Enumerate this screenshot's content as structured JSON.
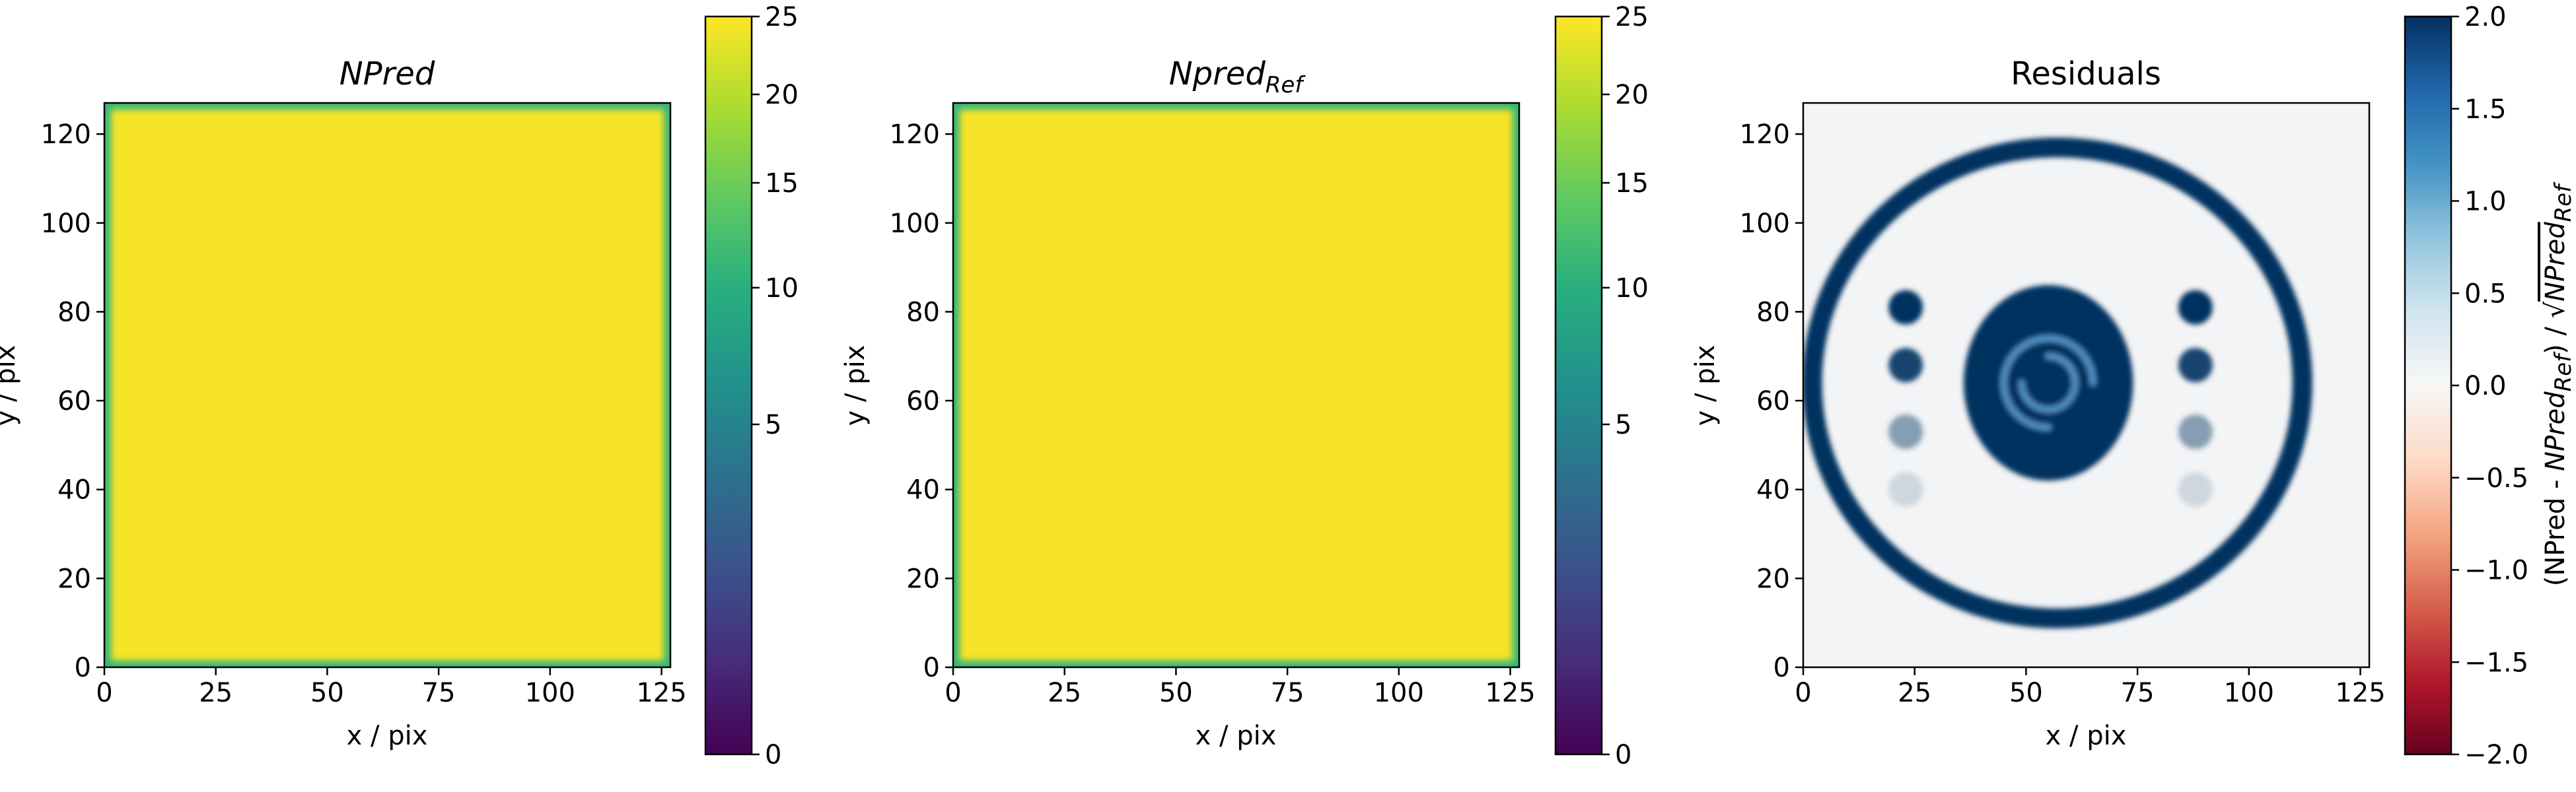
{
  "chart_data": [
    {
      "type": "heatmap",
      "title": "NPred",
      "title_style": "italic",
      "xlabel": "x / pix",
      "ylabel": "y / pix",
      "xlim": [
        0,
        127
      ],
      "ylim": [
        0,
        127
      ],
      "x_ticks": [
        0,
        25,
        50,
        75,
        100,
        125
      ],
      "y_ticks": [
        0,
        20,
        40,
        60,
        80,
        100,
        120
      ],
      "colormap": "viridis",
      "colorbar": {
        "label": "",
        "min": 0,
        "max": 25,
        "scale": "sqrt",
        "ticks": [
          0,
          5,
          10,
          15,
          20,
          25
        ]
      },
      "map": {
        "description_value": "nearly uniform",
        "interior_value": 23,
        "edge_value": 15
      }
    },
    {
      "type": "heatmap",
      "title": "Npred",
      "title_subscript": "Ref",
      "title_style": "italic",
      "xlabel": "x / pix",
      "ylabel": "y / pix",
      "xlim": [
        0,
        127
      ],
      "ylim": [
        0,
        127
      ],
      "x_ticks": [
        0,
        25,
        50,
        75,
        100,
        125
      ],
      "y_ticks": [
        0,
        20,
        40,
        60,
        80,
        100,
        120
      ],
      "colormap": "viridis",
      "colorbar": {
        "label": "",
        "min": 0,
        "max": 25,
        "scale": "sqrt",
        "ticks": [
          0,
          5,
          10,
          15,
          20,
          25
        ]
      },
      "map": {
        "interior_value": 23,
        "edge_value": 15
      }
    },
    {
      "type": "heatmap",
      "title": "Residuals",
      "xlabel": "x / pix",
      "ylabel": "y / pix",
      "xlim": [
        0,
        127
      ],
      "ylim": [
        0,
        127
      ],
      "x_ticks": [
        0,
        25,
        50,
        75,
        100,
        125
      ],
      "y_ticks": [
        0,
        20,
        40,
        60,
        80,
        100,
        120
      ],
      "colormap": "RdBu",
      "colorbar": {
        "label_parts": [
          "(NPred - ",
          "NPred",
          "Ref",
          ") / √",
          "NPred",
          "Ref"
        ],
        "min": -2.0,
        "max": 2.0,
        "scale": "linear",
        "ticks": [
          -2.0,
          -1.5,
          -1.0,
          -0.5,
          0.0,
          0.5,
          1.0,
          1.5,
          2.0
        ],
        "tick_labels": [
          "−2.0",
          "−1.5",
          "−1.0",
          "−0.5",
          "0.0",
          "0.5",
          "1.0",
          "1.5",
          "2.0"
        ]
      },
      "map": {
        "background_value": 0.0,
        "features": [
          {
            "kind": "ring",
            "center": [
              57,
              64
            ],
            "rx": 55,
            "ry": 53,
            "value": 2.0
          },
          {
            "kind": "blob",
            "center": [
              55,
              64
            ],
            "rx": 19,
            "ry": 22,
            "value": 2.0
          },
          {
            "kind": "spot",
            "center": [
              23,
              81
            ],
            "value": 2.0
          },
          {
            "kind": "spot",
            "center": [
              23,
              68
            ],
            "value": 1.8
          },
          {
            "kind": "spot",
            "center": [
              23,
              53
            ],
            "value": 0.9
          },
          {
            "kind": "spot",
            "center": [
              23,
              40
            ],
            "value": 0.3
          },
          {
            "kind": "spot",
            "center": [
              88,
              81
            ],
            "value": 2.0
          },
          {
            "kind": "spot",
            "center": [
              88,
              68
            ],
            "value": 1.8
          },
          {
            "kind": "spot",
            "center": [
              88,
              53
            ],
            "value": 0.9
          },
          {
            "kind": "spot",
            "center": [
              88,
              40
            ],
            "value": 0.3
          }
        ]
      }
    }
  ],
  "colors": {
    "viridis_high": "#f7e425",
    "viridis_edge": "#35b779",
    "residual_dark": "#053061",
    "residual_bg": "#f2f4f5"
  }
}
